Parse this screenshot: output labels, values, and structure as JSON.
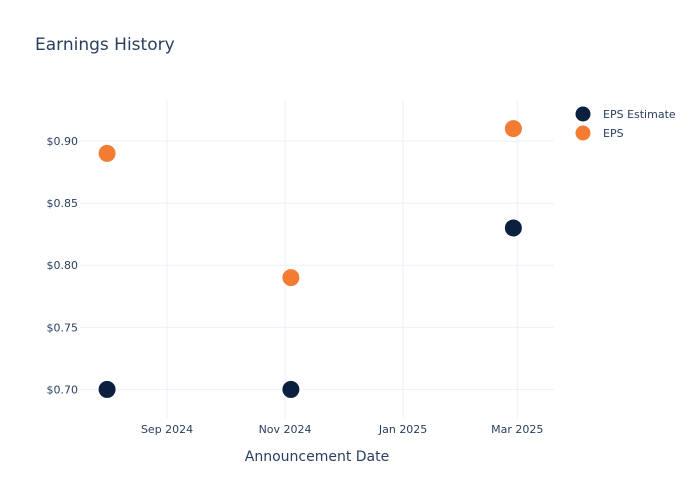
{
  "chart_data": {
    "type": "scatter",
    "title": "Earnings History",
    "xlabel": "Announcement Date",
    "ylabel": "",
    "x_tick_labels": [
      {
        "date": "2024-09-01",
        "label": "Sep 2024"
      },
      {
        "date": "2024-11-01",
        "label": "Nov 2024"
      },
      {
        "date": "2025-01-01",
        "label": "Jan 2025"
      },
      {
        "date": "2025-03-01",
        "label": "Mar 2025"
      }
    ],
    "y_ticks": [
      0.7,
      0.75,
      0.8,
      0.85,
      0.9
    ],
    "y_tick_prefix": "$",
    "xlim": [
      "2024-07-18",
      "2025-03-20"
    ],
    "ylim": [
      0.677,
      0.933
    ],
    "grid": true,
    "legend_position": "top-right",
    "series": [
      {
        "name": "EPS Estimate",
        "color": "#0b1f3f",
        "points": [
          {
            "x": "2024-08-01",
            "y": 0.7
          },
          {
            "x": "2024-11-04",
            "y": 0.7
          },
          {
            "x": "2025-02-27",
            "y": 0.83
          }
        ]
      },
      {
        "name": "EPS",
        "color": "#f47c32",
        "points": [
          {
            "x": "2024-08-01",
            "y": 0.89
          },
          {
            "x": "2024-11-04",
            "y": 0.79
          },
          {
            "x": "2025-02-27",
            "y": 0.91
          }
        ]
      }
    ]
  }
}
